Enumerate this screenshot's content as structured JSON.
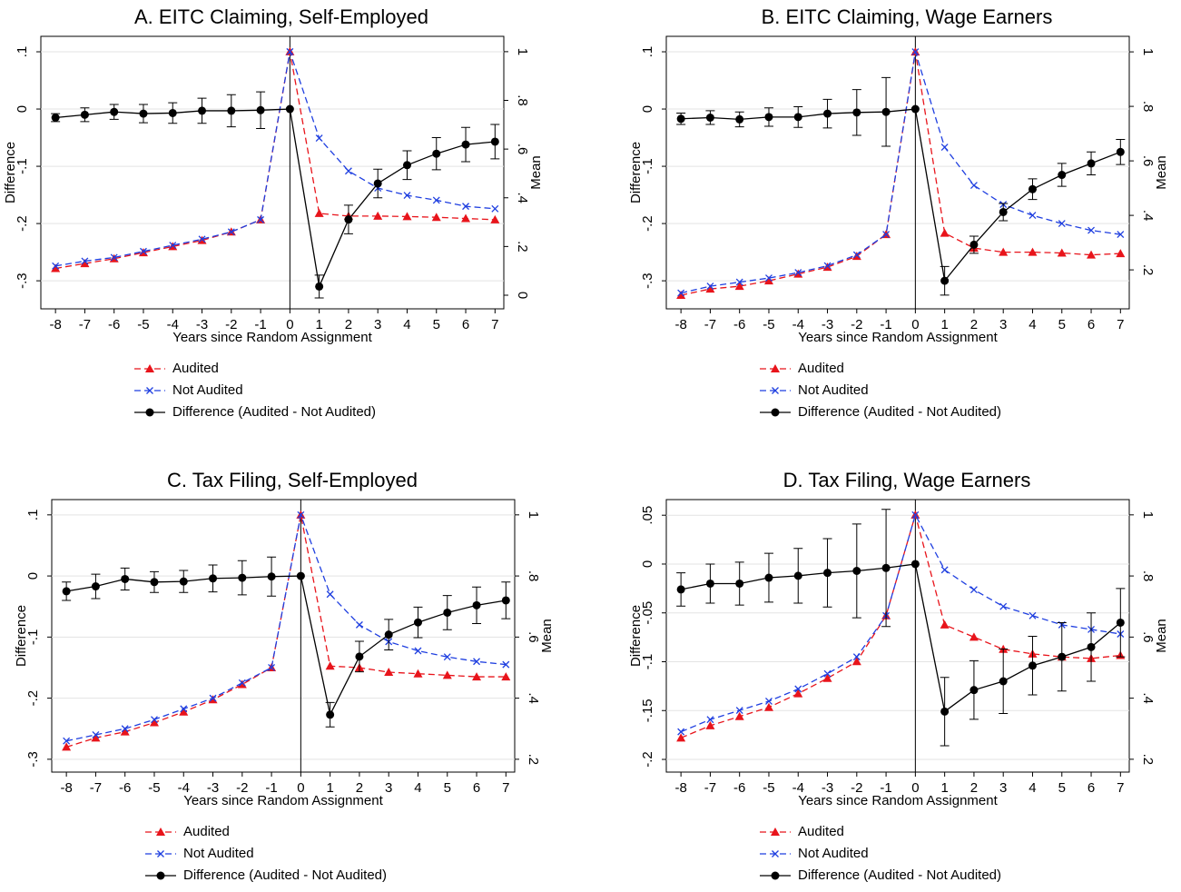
{
  "chart_data": [
    {
      "type": "line",
      "title": "A. EITC Claiming, Self-Employed",
      "xlabel": "Years since Random Assignment",
      "ylabel": "Difference",
      "y2label": "Mean",
      "x": [
        -8,
        -7,
        -6,
        -5,
        -4,
        -3,
        -2,
        -1,
        0,
        1,
        2,
        3,
        4,
        5,
        6,
        7
      ],
      "xlim": [
        -8.5,
        7.3
      ],
      "xticks": [
        -8,
        -7,
        -6,
        -5,
        -4,
        -3,
        -2,
        -1,
        0,
        1,
        2,
        3,
        4,
        5,
        6,
        7
      ],
      "ylim": [
        -0.349,
        0.127
      ],
      "yticks": [
        {
          "value": 0.1,
          "label": ".1"
        },
        0,
        {
          "value": -0.1,
          "label": "-.1"
        },
        {
          "value": -0.2,
          "label": "-.2"
        },
        {
          "value": -0.3,
          "label": "-.3"
        }
      ],
      "y2lim": [
        -0.056,
        1.063
      ],
      "y2ticks": [
        0,
        {
          "value": 0.2,
          "label": ".2"
        },
        {
          "value": 0.4,
          "label": ".4"
        },
        {
          "value": 0.6,
          "label": ".6"
        },
        {
          "value": 0.8,
          "label": ".8"
        },
        1
      ],
      "grid": true,
      "xline": 0,
      "series": [
        {
          "name": "Audited",
          "color": "#e8141b",
          "axis": "y2",
          "marker": "triangle",
          "dash": true,
          "values": [
            0.11,
            0.13,
            0.15,
            0.175,
            0.2,
            0.225,
            0.26,
            0.31,
            1.0,
            0.336,
            0.325,
            0.325,
            0.323,
            0.32,
            0.315,
            0.31
          ]
        },
        {
          "name": "Not Audited",
          "color": "#1f3fe0",
          "axis": "y2",
          "marker": "x",
          "dash": true,
          "values": [
            0.12,
            0.14,
            0.155,
            0.18,
            0.205,
            0.23,
            0.26,
            0.31,
            1.0,
            0.645,
            0.51,
            0.44,
            0.41,
            0.39,
            0.365,
            0.355
          ]
        },
        {
          "name": "Difference (Audited - Not Audited)",
          "color": "#000000",
          "axis": "y",
          "marker": "circle",
          "dash": false,
          "values": [
            -0.015,
            -0.01,
            -0.005,
            -0.008,
            -0.007,
            -0.003,
            -0.003,
            -0.002,
            0,
            -0.31,
            -0.193,
            -0.13,
            -0.098,
            -0.078,
            -0.062,
            -0.057
          ],
          "errors": [
            0.007,
            0.012,
            0.013,
            0.016,
            0.018,
            0.022,
            0.028,
            0.032,
            null,
            0.02,
            0.025,
            0.025,
            0.025,
            0.028,
            0.03,
            0.03
          ]
        }
      ]
    },
    {
      "type": "line",
      "title": "B. EITC Claiming, Wage Earners",
      "xlabel": "Years since Random Assignment",
      "ylabel": "Difference",
      "y2label": "Mean",
      "x": [
        -8,
        -7,
        -6,
        -5,
        -4,
        -3,
        -2,
        -1,
        0,
        1,
        2,
        3,
        4,
        5,
        6,
        7
      ],
      "xlim": [
        -8.5,
        7.3
      ],
      "xticks": [
        -8,
        -7,
        -6,
        -5,
        -4,
        -3,
        -2,
        -1,
        0,
        1,
        2,
        3,
        4,
        5,
        6,
        7
      ],
      "ylim": [
        -0.349,
        0.127
      ],
      "yticks": [
        {
          "value": 0.1,
          "label": ".1"
        },
        0,
        {
          "value": -0.1,
          "label": "-.1"
        },
        {
          "value": -0.2,
          "label": "-.2"
        },
        {
          "value": -0.3,
          "label": "-.3"
        }
      ],
      "y2lim": [
        0.057,
        1.057
      ],
      "y2ticks": [
        {
          "value": 0.2,
          "label": ".2"
        },
        {
          "value": 0.4,
          "label": ".4"
        },
        {
          "value": 0.6,
          "label": ".6"
        },
        {
          "value": 0.8,
          "label": ".8"
        },
        1
      ],
      "grid": true,
      "xline": 0,
      "series": [
        {
          "name": "Audited",
          "color": "#e8141b",
          "axis": "y2",
          "marker": "triangle",
          "dash": true,
          "values": [
            0.107,
            0.13,
            0.14,
            0.16,
            0.185,
            0.21,
            0.25,
            0.33,
            1.0,
            0.335,
            0.28,
            0.265,
            0.265,
            0.262,
            0.255,
            0.26
          ]
        },
        {
          "name": "Not Audited",
          "color": "#1f3fe0",
          "axis": "y2",
          "marker": "x",
          "dash": true,
          "values": [
            0.115,
            0.14,
            0.155,
            0.17,
            0.19,
            0.215,
            0.255,
            0.33,
            1.0,
            0.65,
            0.51,
            0.44,
            0.4,
            0.37,
            0.345,
            0.33
          ]
        },
        {
          "name": "Difference (Audited - Not Audited)",
          "color": "#000000",
          "axis": "y",
          "marker": "circle",
          "dash": false,
          "values": [
            -0.017,
            -0.015,
            -0.018,
            -0.014,
            -0.014,
            -0.008,
            -0.006,
            -0.005,
            0,
            -0.3,
            -0.237,
            -0.18,
            -0.14,
            -0.115,
            -0.095,
            -0.075
          ],
          "errors": [
            0.01,
            0.012,
            0.013,
            0.016,
            0.018,
            0.025,
            0.04,
            0.06,
            null,
            0.025,
            0.015,
            0.015,
            0.018,
            0.02,
            0.02,
            0.022
          ]
        }
      ]
    },
    {
      "type": "line",
      "title": "C. Tax Filing, Self-Employed",
      "xlabel": "Years since Random Assignment",
      "ylabel": "Difference",
      "y2label": "Mean",
      "x": [
        -8,
        -7,
        -6,
        -5,
        -4,
        -3,
        -2,
        -1,
        0,
        1,
        2,
        3,
        4,
        5,
        6,
        7
      ],
      "xlim": [
        -8.5,
        7.3
      ],
      "xticks": [
        -8,
        -7,
        -6,
        -5,
        -4,
        -3,
        -2,
        -1,
        0,
        1,
        2,
        3,
        4,
        5,
        6,
        7
      ],
      "ylim": [
        -0.321,
        0.125
      ],
      "yticks": [
        {
          "value": 0.1,
          "label": ".1"
        },
        0,
        {
          "value": -0.1,
          "label": "-.1"
        },
        {
          "value": -0.2,
          "label": "-.2"
        },
        {
          "value": -0.3,
          "label": "-.3"
        }
      ],
      "y2lim": [
        0.158,
        1.05
      ],
      "y2ticks": [
        {
          "value": 0.2,
          "label": ".2"
        },
        {
          "value": 0.4,
          "label": ".4"
        },
        {
          "value": 0.6,
          "label": ".6"
        },
        {
          "value": 0.8,
          "label": ".8"
        },
        1
      ],
      "grid": true,
      "xline": 0,
      "series": [
        {
          "name": "Audited",
          "color": "#e8141b",
          "axis": "y2",
          "marker": "triangle",
          "dash": true,
          "values": [
            0.24,
            0.27,
            0.29,
            0.32,
            0.355,
            0.395,
            0.445,
            0.5,
            1.0,
            0.505,
            0.5,
            0.485,
            0.48,
            0.475,
            0.47,
            0.47
          ]
        },
        {
          "name": "Not Audited",
          "color": "#1f3fe0",
          "axis": "y2",
          "marker": "x",
          "dash": true,
          "values": [
            0.26,
            0.28,
            0.3,
            0.33,
            0.365,
            0.4,
            0.45,
            0.5,
            1.0,
            0.74,
            0.64,
            0.585,
            0.555,
            0.535,
            0.52,
            0.51
          ]
        },
        {
          "name": "Difference (Audited - Not Audited)",
          "color": "#000000",
          "axis": "y",
          "marker": "circle",
          "dash": false,
          "values": [
            -0.025,
            -0.017,
            -0.005,
            -0.01,
            -0.009,
            -0.004,
            -0.003,
            -0.001,
            0,
            -0.227,
            -0.132,
            -0.096,
            -0.076,
            -0.06,
            -0.048,
            -0.04
          ],
          "errors": [
            0.015,
            0.02,
            0.018,
            0.017,
            0.018,
            0.022,
            0.028,
            0.032,
            null,
            0.02,
            0.025,
            0.025,
            0.025,
            0.028,
            0.03,
            0.03
          ]
        }
      ]
    },
    {
      "type": "line",
      "title": "D. Tax Filing, Wage Earners",
      "xlabel": "Years since Random Assignment",
      "ylabel": "Difference",
      "y2label": "Mean",
      "x": [
        -8,
        -7,
        -6,
        -5,
        -4,
        -3,
        -2,
        -1,
        0,
        1,
        2,
        3,
        4,
        5,
        6,
        7
      ],
      "xlim": [
        -8.5,
        7.3
      ],
      "xticks": [
        -8,
        -7,
        -6,
        -5,
        -4,
        -3,
        -2,
        -1,
        0,
        1,
        2,
        3,
        4,
        5,
        6,
        7
      ],
      "ylim": [
        -0.213,
        0.066
      ],
      "yticks": [
        {
          "value": 0.05,
          "label": ".05"
        },
        0,
        {
          "value": -0.05,
          "label": "-.05"
        },
        {
          "value": -0.1,
          "label": "-.1"
        },
        {
          "value": -0.15,
          "label": "-.15"
        },
        {
          "value": -0.2,
          "label": "-.2"
        }
      ],
      "y2lim": [
        0.158,
        1.05
      ],
      "y2ticks": [
        {
          "value": 0.2,
          "label": ".2"
        },
        {
          "value": 0.4,
          "label": ".4"
        },
        {
          "value": 0.6,
          "label": ".6"
        },
        {
          "value": 0.8,
          "label": ".8"
        },
        1
      ],
      "grid": true,
      "xline": 0,
      "series": [
        {
          "name": "Audited",
          "color": "#e8141b",
          "axis": "y2",
          "marker": "triangle",
          "dash": true,
          "values": [
            0.27,
            0.31,
            0.34,
            0.37,
            0.415,
            0.465,
            0.52,
            0.67,
            1.0,
            0.64,
            0.6,
            0.56,
            0.545,
            0.535,
            0.53,
            0.54
          ]
        },
        {
          "name": "Not Audited",
          "color": "#1f3fe0",
          "axis": "y2",
          "marker": "x",
          "dash": true,
          "values": [
            0.29,
            0.33,
            0.36,
            0.39,
            0.43,
            0.48,
            0.535,
            0.67,
            1.0,
            0.82,
            0.755,
            0.7,
            0.67,
            0.64,
            0.625,
            0.61
          ]
        },
        {
          "name": "Difference (Audited - Not Audited)",
          "color": "#000000",
          "axis": "y",
          "marker": "circle",
          "dash": false,
          "values": [
            -0.026,
            -0.02,
            -0.02,
            -0.014,
            -0.012,
            -0.009,
            -0.007,
            -0.004,
            0,
            -0.151,
            -0.129,
            -0.12,
            -0.104,
            -0.095,
            -0.085,
            -0.06
          ],
          "errors": [
            0.017,
            0.02,
            0.022,
            0.025,
            0.028,
            0.035,
            0.048,
            0.06,
            null,
            0.035,
            0.03,
            0.033,
            0.03,
            0.035,
            0.035,
            0.035
          ]
        }
      ]
    }
  ]
}
